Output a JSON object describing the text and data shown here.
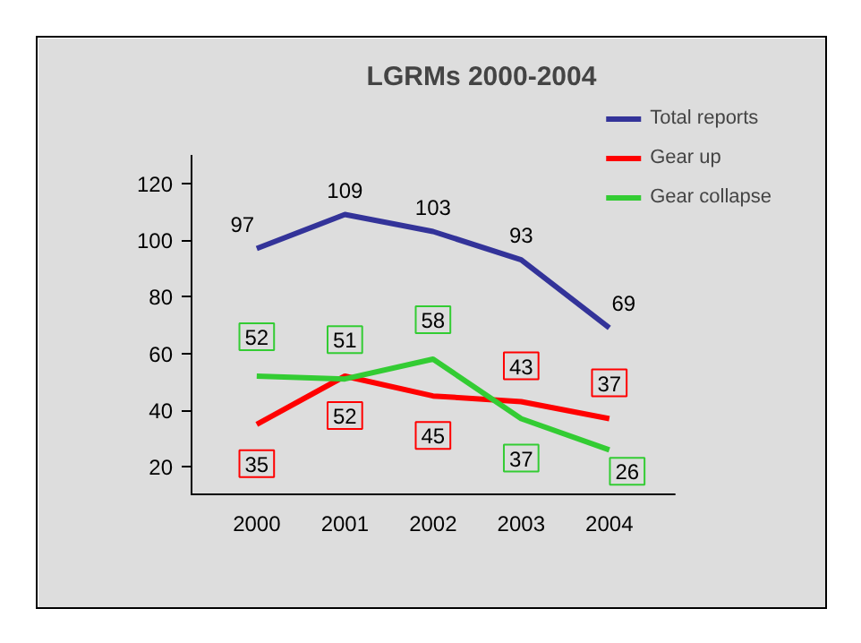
{
  "chart_data": {
    "type": "line",
    "title": "LGRMs 2000-2004",
    "categories": [
      "2000",
      "2001",
      "2002",
      "2003",
      "2004"
    ],
    "series": [
      {
        "name": "Total reports",
        "color": "#333399",
        "values": [
          97,
          109,
          103,
          93,
          69
        ]
      },
      {
        "name": "Gear up",
        "color": "#ff0000",
        "values": [
          35,
          52,
          45,
          43,
          37
        ]
      },
      {
        "name": "Gear collapse",
        "color": "#33cc33",
        "values": [
          52,
          51,
          58,
          37,
          26
        ]
      }
    ],
    "ylim": [
      10,
      130
    ],
    "yticks": [
      20,
      40,
      60,
      80,
      100,
      120
    ],
    "data_labels": true,
    "legend": "top right",
    "grid": false,
    "marker": "none",
    "line_style": "solid"
  }
}
